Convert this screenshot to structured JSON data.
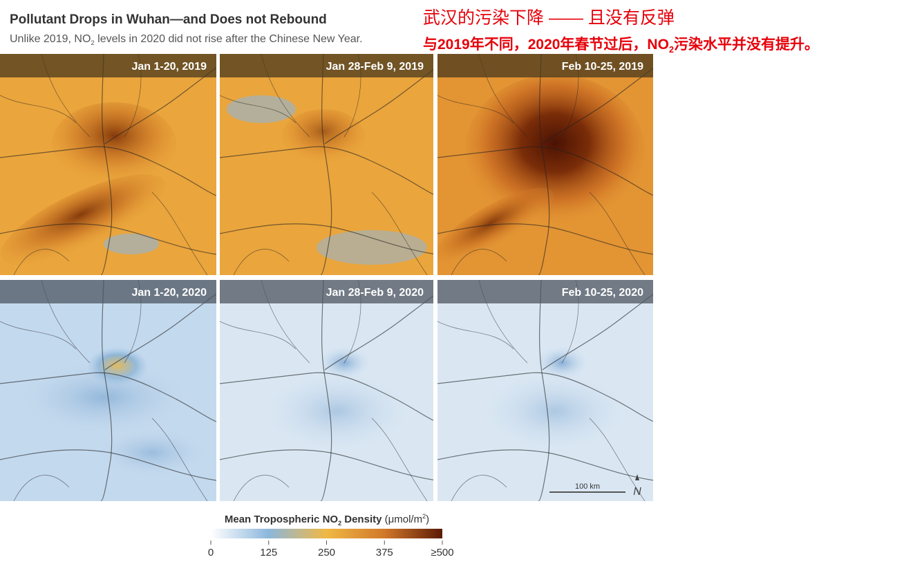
{
  "header": {
    "title": "Pollutant Drops in Wuhan—and Does not Rebound",
    "subtitle": [
      "Unlike 2019, NO",
      "2",
      " levels in 2020 did not rise after the Chinese New Year."
    ]
  },
  "translation": {
    "title": "武汉的污染下降 —— 且没有反弹",
    "subtitle": [
      "与2019年不同，2020年春节过后，NO",
      "2",
      "污染水平并没有提升。"
    ]
  },
  "panels": [
    {
      "label": "Jan 1-20, 2019"
    },
    {
      "label": "Jan 28-Feb 9, 2019"
    },
    {
      "label": "Feb 10-25, 2019"
    },
    {
      "label": "Jan 1-20, 2020"
    },
    {
      "label": "Jan 28-Feb 9, 2020"
    },
    {
      "label": "Feb 10-25, 2020"
    }
  ],
  "scale_bar": "100 km",
  "north": "N",
  "legend": {
    "title": [
      "Mean Tropospheric NO",
      "2",
      " Density",
      " (μmol/m",
      "2",
      ")"
    ],
    "range": [
      0,
      500
    ],
    "ticks": [
      0,
      125,
      250,
      375,
      {
        "value": 500,
        "label": "≥500"
      }
    ]
  }
}
